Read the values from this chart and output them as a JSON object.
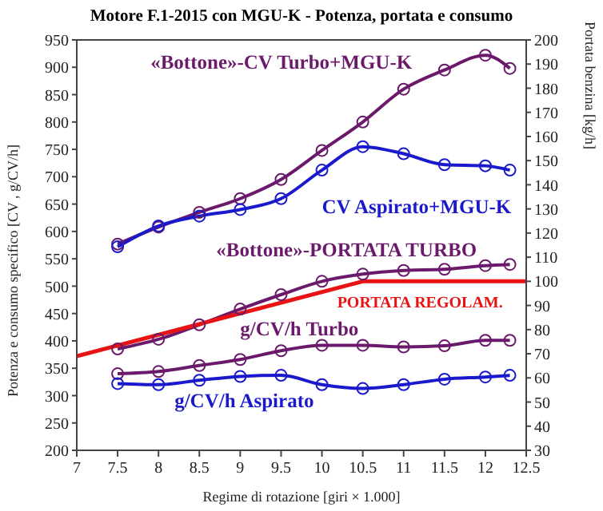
{
  "chart_data": {
    "type": "line",
    "title": "Motore F.1-2015 con MGU-K - Potenza, portata e consumo",
    "xlabel": "Regime di rotazione  [giri × 1.000]",
    "ylabel": "Potenza e consumo specifico [CV , g/CV/h]",
    "y2label": "Portata benzina  [kg/h]",
    "x": [
      7.5,
      8,
      8.5,
      9,
      9.5,
      10,
      10.5,
      11,
      11.5,
      12,
      12.3
    ],
    "marker": "circle",
    "xlim": [
      7,
      12.5
    ],
    "xticks": [
      7,
      7.5,
      8,
      8.5,
      9,
      9.5,
      10,
      10.5,
      11,
      11.5,
      12,
      12.5
    ],
    "ylim": [
      200,
      950
    ],
    "yticks": [
      200,
      250,
      300,
      350,
      400,
      450,
      500,
      550,
      600,
      650,
      700,
      750,
      800,
      850,
      900,
      950
    ],
    "y2lim": [
      30,
      200
    ],
    "y2ticks": [
      30,
      40,
      50,
      60,
      70,
      80,
      90,
      100,
      110,
      120,
      130,
      140,
      150,
      160,
      170,
      180,
      190,
      200
    ],
    "series": [
      {
        "name": "«Bottone»-CV Turbo+MGU-K",
        "color": "#6b1a6b",
        "values": [
          577,
          608,
          635,
          660,
          695,
          748,
          800,
          860,
          895,
          922,
          898
        ]
      },
      {
        "name": "CV Aspirato+MGU-K",
        "color": "#1a1acc",
        "values": [
          572,
          610,
          628,
          640,
          660,
          712,
          755,
          742,
          722,
          720,
          712
        ]
      },
      {
        "name": "«Bottone»-PORTATA TURBO",
        "color": "#6b1a6b",
        "axis": "y2",
        "values": [
          72,
          76,
          82,
          88.5,
          94.5,
          100,
          103,
          104.5,
          105,
          106.5,
          107
        ]
      },
      {
        "name": "PORTATA REGOLAM.",
        "color": "#e81414",
        "axis": "y2",
        "marker": "none",
        "x": [
          7,
          10.5,
          12.5
        ],
        "values": [
          69,
          100,
          100
        ]
      },
      {
        "name": "g/CV/h Turbo",
        "color": "#6b1a6b",
        "values": [
          340,
          344,
          355,
          366,
          382,
          392,
          392,
          389,
          391,
          401,
          401
        ]
      },
      {
        "name": "g/CV/h Aspirato",
        "color": "#1a1acc",
        "values": [
          322,
          320,
          328,
          335,
          337,
          320,
          313,
          320,
          330,
          334,
          337
        ]
      }
    ]
  }
}
